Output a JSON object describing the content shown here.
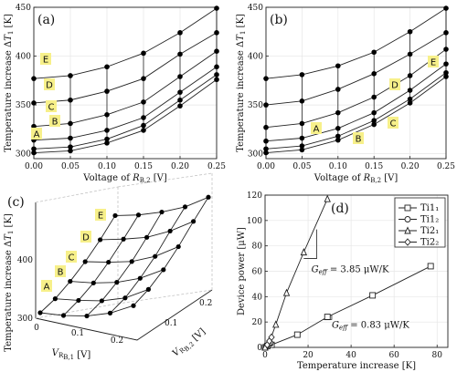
{
  "chart_data": [
    {
      "panel": "(a)",
      "type": "line",
      "xlabel": "Voltage of R_B,2 [V]",
      "ylabel": "Temperature increase ΔT_1 [K]",
      "xlim": [
        0,
        0.25
      ],
      "ylim": [
        295,
        450
      ],
      "xticks": [
        0,
        0.05,
        0.1,
        0.15,
        0.2,
        0.25
      ],
      "xtick_labels": [
        "0.00",
        "0.05",
        "0.10",
        "0.15",
        "0.20",
        "0.25"
      ],
      "yticks": [
        300,
        350,
        400,
        450
      ],
      "x": [
        0,
        0.05,
        0.1,
        0.15,
        0.2,
        0.25
      ],
      "series": [
        {
          "label": "A",
          "values": [
            301,
            303,
            311,
            324,
            349,
            376
          ]
        },
        {
          "label": "B",
          "values": [
            305,
            307,
            315,
            329,
            355,
            381
          ]
        },
        {
          "label": "C",
          "values": [
            314,
            316,
            324,
            337,
            363,
            389
          ]
        },
        {
          "label": "D",
          "values": [
            328,
            331,
            340,
            353,
            379,
            405
          ]
        },
        {
          "label": "E",
          "values": [
            352,
            355,
            364,
            377,
            402,
            424
          ]
        },
        {
          "label": "",
          "values": [
            377,
            380,
            389,
            403,
            424,
            449
          ]
        }
      ],
      "markers": "filled-circle",
      "vertical_connectors": true
    },
    {
      "panel": "(b)",
      "type": "line",
      "xlabel": "Voltage of R_B,2 [V]",
      "ylabel": "Temperature increase ΔT_1 [K]",
      "xlim": [
        0,
        0.25
      ],
      "ylim": [
        295,
        450
      ],
      "xticks": [
        0,
        0.05,
        0.1,
        0.15,
        0.2,
        0.25
      ],
      "xtick_labels": [
        "0.00",
        "0.05",
        "0.10",
        "0.15",
        "0.20",
        "0.25"
      ],
      "yticks": [
        300,
        350,
        400,
        450
      ],
      "x": [
        0,
        0.05,
        0.1,
        0.15,
        0.2,
        0.25
      ],
      "series": [
        {
          "label": "A",
          "values": [
            301,
            304,
            314,
            330,
            352,
            379
          ]
        },
        {
          "label": "B",
          "values": [
            305,
            308,
            318,
            334,
            356,
            383
          ]
        },
        {
          "label": "C",
          "values": [
            313,
            316,
            326,
            342,
            365,
            392
          ]
        },
        {
          "label": "D",
          "values": [
            327,
            331,
            342,
            358,
            380,
            407
          ]
        },
        {
          "label": "E",
          "values": [
            350,
            354,
            366,
            382,
            402,
            424
          ]
        },
        {
          "label": "",
          "values": [
            377,
            381,
            390,
            404,
            425,
            449
          ]
        }
      ],
      "markers": "filled-circle",
      "vertical_connectors": true
    },
    {
      "panel": "(c)",
      "type": "surface-3d",
      "xlabel": "V_R_B,1 [V]",
      "ylabel": "V_R_B,2 [V]",
      "zlabel": "Temperature increase ΔT_1 [K]",
      "x_ticks": [
        0,
        0.1,
        0.2
      ],
      "y_ticks": [
        0.1,
        0.2
      ],
      "z_ticks": [
        300,
        400
      ],
      "rows": [
        "A",
        "B",
        "C",
        "D",
        "E"
      ],
      "markers": "filled-circle"
    },
    {
      "panel": "(d)",
      "type": "scatter",
      "xlabel": "Temperature increase [K]",
      "ylabel": "Device power [μW]",
      "xlim": [
        0,
        85
      ],
      "ylim": [
        0,
        120
      ],
      "xticks": [
        0,
        20,
        40,
        60,
        80
      ],
      "yticks": [
        0,
        20,
        40,
        60,
        80,
        100,
        120
      ],
      "series": [
        {
          "name": "Ti1₁",
          "marker": "square",
          "x": [
            0,
            1,
            3,
            15,
            29,
            50,
            77
          ],
          "y": [
            0,
            1,
            2,
            10,
            24,
            41,
            64
          ]
        },
        {
          "name": "Ti1₂",
          "marker": "circle",
          "x": [
            0.5,
            1.5,
            2.5
          ],
          "y": [
            1,
            2,
            3
          ]
        },
        {
          "name": "Ti2₁",
          "marker": "triangle",
          "x": [
            0,
            2,
            5,
            10,
            18,
            29
          ],
          "y": [
            0,
            4,
            18,
            43,
            75,
            117
          ]
        },
        {
          "name": "Ti2₂",
          "marker": "diamond",
          "x": [
            1,
            2,
            3
          ],
          "y": [
            2,
            5,
            8
          ]
        }
      ],
      "fits": [
        {
          "label": "G_eff = 3.85 μW/K",
          "slope": 3.85
        },
        {
          "label": "G_eff = 0.83 μW/K",
          "slope": 0.83
        }
      ],
      "legend_position": "top-right"
    }
  ]
}
